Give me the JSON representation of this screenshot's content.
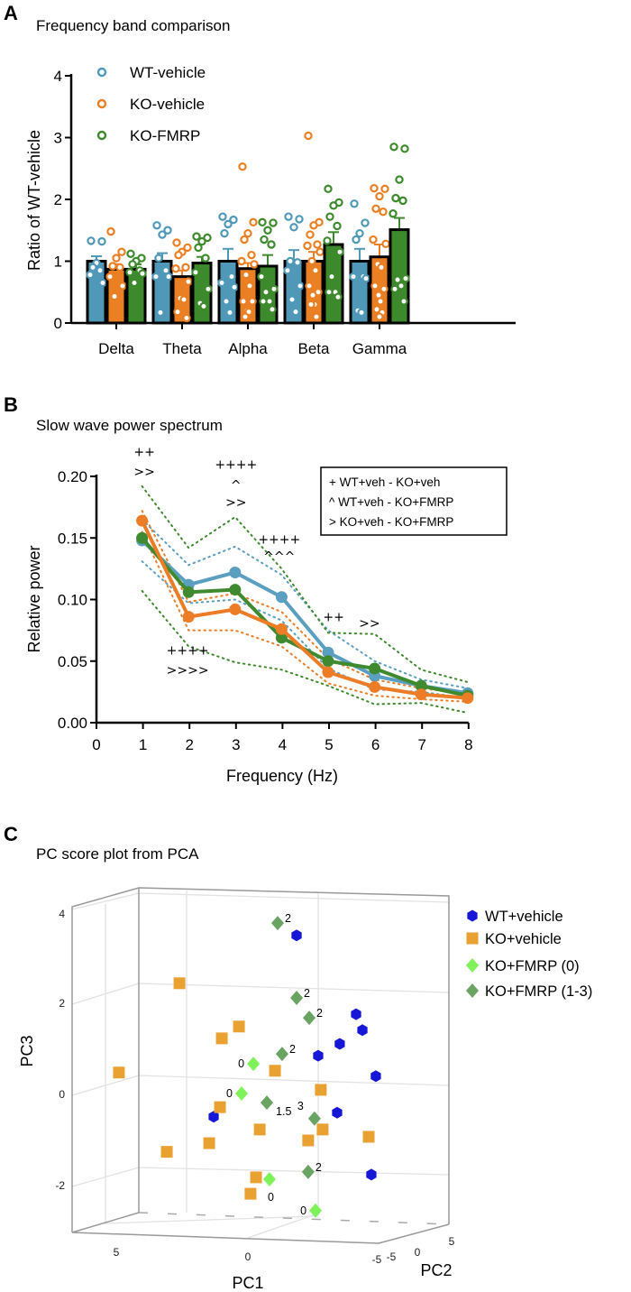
{
  "chart_data": [
    {
      "panel": "A",
      "type": "bar",
      "title": "Frequency band comparison",
      "ylabel": "Ratio of WT-vehicle",
      "xlabel": "",
      "ylim": [
        0,
        4
      ],
      "yticks": [
        "0",
        "1",
        "2",
        "3",
        "4"
      ],
      "categories": [
        "Delta",
        "Theta",
        "Alpha",
        "Beta",
        "Gamma"
      ],
      "legend_position": "top-left",
      "series": [
        {
          "name": "WT-vehicle",
          "color": "#4f98b8",
          "values": [
            1.0,
            1.0,
            1.0,
            1.0,
            1.0
          ],
          "error_upper": [
            1.08,
            1.13,
            1.2,
            1.18,
            1.2
          ],
          "points": [
            [
              1.33,
              1.32,
              0.97,
              0.9,
              0.85,
              0.78,
              0.65
            ],
            [
              1.58,
              1.5,
              1.43,
              1.05,
              0.85,
              0.75,
              0.75,
              0.17
            ],
            [
              1.72,
              1.67,
              1.6,
              1.45,
              0.75,
              0.65,
              0.58,
              0.35,
              0.17
            ],
            [
              1.72,
              1.68,
              1.55,
              1.0,
              0.98,
              0.85,
              0.6,
              0.38,
              0.18
            ],
            [
              1.93,
              1.62,
              1.45,
              1.35,
              0.75,
              0.75,
              0.72,
              0.2,
              0.17
            ]
          ]
        },
        {
          "name": "KO-vehicle",
          "color": "#ea7f24",
          "values": [
            0.87,
            0.75,
            0.88,
            1.0,
            1.07
          ],
          "error_upper": [
            0.95,
            0.85,
            0.97,
            1.15,
            1.27
          ],
          "points": [
            [
              1.48,
              1.15,
              1.05,
              0.92,
              0.9,
              0.75,
              0.6,
              0.43
            ],
            [
              1.3,
              1.22,
              1.15,
              1.1,
              0.9,
              0.88,
              0.67,
              0.4,
              0.38,
              0.18,
              0.08
            ],
            [
              2.53,
              1.63,
              1.45,
              1.35,
              1.1,
              1.0,
              0.95,
              0.78,
              0.6,
              0.35,
              0.35,
              0.2,
              0.18,
              0.1
            ],
            [
              3.03,
              1.63,
              1.58,
              1.43,
              1.27,
              1.25,
              1.15,
              1.0,
              0.85,
              0.6,
              0.5,
              0.45,
              0.3,
              0.3,
              0.1
            ],
            [
              2.18,
              2.17,
              2.05,
              1.85,
              1.8,
              1.35,
              1.28,
              0.95,
              0.9,
              0.6,
              0.55,
              0.45,
              0.35,
              0.22,
              0.17,
              0.1
            ]
          ]
        },
        {
          "name": "KO-FMRP",
          "color": "#3d8a2c",
          "values": [
            0.87,
            0.97,
            0.92,
            1.27,
            1.51
          ],
          "error_upper": [
            0.95,
            1.07,
            1.1,
            1.47,
            1.7
          ],
          "points": [
            [
              1.12,
              1.05,
              1.0,
              0.95,
              0.85,
              0.82,
              0.8,
              0.65
            ],
            [
              1.4,
              1.38,
              1.32,
              1.22,
              1.05,
              0.82,
              0.55,
              0.32,
              0.27
            ],
            [
              1.63,
              1.62,
              1.5,
              1.35,
              1.27,
              0.75,
              0.55,
              0.5,
              0.35,
              0.35,
              0.22
            ],
            [
              2.17,
              1.95,
              1.9,
              1.72,
              1.57,
              1.33,
              1.15,
              0.75,
              0.5,
              0.5,
              0.42
            ],
            [
              2.85,
              2.82,
              2.32,
              2.02,
              1.98,
              1.77,
              0.72,
              0.7,
              0.6,
              0.55,
              0.35
            ]
          ]
        }
      ]
    },
    {
      "panel": "B",
      "type": "line",
      "title": "Slow wave power spectrum",
      "xlabel": "Frequency (Hz)",
      "ylabel": "Relative power",
      "xlim": [
        0,
        8
      ],
      "ylim": [
        0,
        0.2
      ],
      "xticks": [
        "0",
        "1",
        "2",
        "3",
        "4",
        "5",
        "6",
        "7",
        "8"
      ],
      "yticks": [
        "0.00",
        "0.05",
        "0.10",
        "0.15",
        "0.20"
      ],
      "x": [
        1,
        2,
        3,
        4,
        5,
        6,
        7,
        8
      ],
      "series": [
        {
          "color": "#5a9fc0",
          "values": [
            0.148,
            0.112,
            0.122,
            0.102,
            0.057,
            0.038,
            0.03,
            0.024
          ],
          "band_upper": [
            0.165,
            0.128,
            0.143,
            0.12,
            0.075,
            0.05,
            0.035,
            0.028
          ],
          "band_lower": [
            0.131,
            0.097,
            0.1,
            0.083,
            0.044,
            0.027,
            0.025,
            0.02
          ]
        },
        {
          "color": "#3f8a2e",
          "values": [
            0.15,
            0.106,
            0.108,
            0.069,
            0.05,
            0.044,
            0.03,
            0.022
          ],
          "band_upper": [
            0.192,
            0.142,
            0.167,
            0.125,
            0.073,
            0.072,
            0.043,
            0.033
          ],
          "band_lower": [
            0.107,
            0.062,
            0.049,
            0.043,
            0.03,
            0.015,
            0.016,
            0.008
          ]
        },
        {
          "color": "#ec7d26",
          "values": [
            0.164,
            0.086,
            0.092,
            0.076,
            0.041,
            0.029,
            0.023,
            0.02
          ],
          "band_upper": [
            0.172,
            0.098,
            0.105,
            0.09,
            0.052,
            0.035,
            0.028,
            0.023
          ],
          "band_lower": [
            0.155,
            0.075,
            0.075,
            0.062,
            0.032,
            0.022,
            0.019,
            0.017
          ]
        }
      ],
      "legend_box": [
        "+ WT+veh - KO+veh",
        "^ WT+veh - KO+FMRP",
        "> KO+veh - KO+FMRP"
      ],
      "legend_position": "top-right",
      "annotations": [
        {
          "text": "++",
          "x": 1.03,
          "y": 0.22
        },
        {
          "text": ">>",
          "x": 1.03,
          "y": 0.204
        },
        {
          "text": "++++",
          "x": 3.0,
          "y": 0.21
        },
        {
          "text": "^",
          "x": 3.0,
          "y": 0.193
        },
        {
          "text": ">>",
          "x": 3.0,
          "y": 0.179
        },
        {
          "text": "++++",
          "x": 3.93,
          "y": 0.149
        },
        {
          "text": "^^^",
          "x": 3.93,
          "y": 0.135
        },
        {
          "text": "++",
          "x": 5.1,
          "y": 0.086
        },
        {
          "text": ">>",
          "x": 5.87,
          "y": 0.081
        },
        {
          "text": "++++",
          "x": 1.96,
          "y": 0.059
        },
        {
          "text": ">>>>",
          "x": 1.96,
          "y": 0.043
        }
      ]
    },
    {
      "panel": "C",
      "type": "scatter",
      "title": "PC score plot from PCA",
      "xlabel": "PC1",
      "ylabel": "PC3",
      "zlabel": "PC2",
      "pc1_ticks": [
        "5",
        "0",
        "-5"
      ],
      "pc2_ticks": [
        "-5",
        "0",
        "5"
      ],
      "pc3_ticks": [
        "4",
        "2",
        "0",
        "-2"
      ],
      "legend_position": "right",
      "series": [
        {
          "name": "WT+vehicle",
          "color": "#1616d6",
          "marker": "hexagon",
          "points": [
            [
              -1.85,
              3.47
            ],
            [
              -4.11,
              1.74
            ],
            [
              -4.35,
              1.39
            ],
            [
              -3.49,
              1.09
            ],
            [
              -2.67,
              0.83
            ],
            [
              -4.86,
              0.38
            ],
            [
              1.3,
              -0.51
            ],
            [
              -3.39,
              -0.42
            ],
            [
              -4.69,
              -1.78
            ]
          ]
        },
        {
          "name": "KO+vehicle",
          "color": "#e9a232",
          "marker": "square",
          "points": [
            [
              2.6,
              2.42
            ],
            [
              0.34,
              1.47
            ],
            [
              0.99,
              1.21
            ],
            [
              4.9,
              0.46
            ],
            [
              -1.03,
              0.5
            ],
            [
              -2.77,
              0.08
            ],
            [
              1.06,
              -0.3
            ],
            [
              -0.45,
              -0.79
            ],
            [
              -2.84,
              -0.79
            ],
            [
              -4.59,
              -0.95
            ],
            [
              -2.29,
              -1.03
            ],
            [
              1.47,
              -1.09
            ],
            [
              3.08,
              -1.28
            ],
            [
              -0.31,
              -1.84
            ],
            [
              -0.1,
              -2.2
            ]
          ]
        },
        {
          "name": "KO+FMRP (0)",
          "color": "#7ff25a",
          "marker": "diamond",
          "points": [
            [
              -0.21,
              0.65,
              "0"
            ],
            [
              0.24,
              0.0,
              "0"
            ],
            [
              -0.82,
              -1.88,
              "0"
            ],
            [
              -2.57,
              -2.57,
              "0"
            ]
          ]
        },
        {
          "name": "KO+FMRP (1-3)",
          "color": "#6aa463",
          "marker": "diamond",
          "points": [
            [
              -1.13,
              3.74,
              "2"
            ],
            [
              -1.85,
              2.1,
              "2"
            ],
            [
              -2.33,
              1.66,
              "2"
            ],
            [
              -1.3,
              0.87,
              "2"
            ],
            [
              -0.72,
              -0.2,
              "1.5"
            ],
            [
              -2.53,
              -0.55,
              "3"
            ],
            [
              -2.29,
              -1.72,
              "2"
            ]
          ]
        }
      ]
    }
  ],
  "panels": {
    "a": "A",
    "b": "B",
    "c": "C"
  }
}
